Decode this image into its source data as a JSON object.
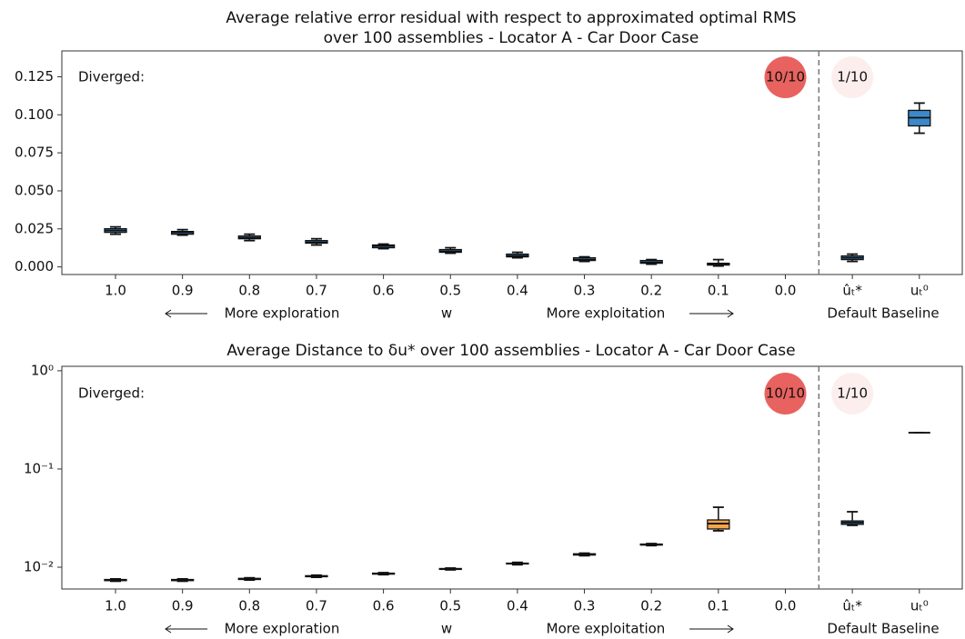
{
  "chart_data": [
    {
      "type": "box",
      "title": [
        "Average relative error residual with respect to approximated optimal RMS",
        "over 100 assemblies - Locator A - Car Door Case"
      ],
      "categories": [
        "1.0",
        "0.9",
        "0.8",
        "0.7",
        "0.6",
        "0.5",
        "0.4",
        "0.3",
        "0.2",
        "0.1",
        "0.0",
        "ûₜ*",
        "uₜ⁰"
      ],
      "boxes": [
        {
          "low": 0.0215,
          "q1": 0.0227,
          "median": 0.0239,
          "q3": 0.0251,
          "high": 0.0263
        },
        {
          "low": 0.0209,
          "q1": 0.0215,
          "median": 0.0227,
          "q3": 0.0233,
          "high": 0.0245
        },
        {
          "low": 0.0173,
          "q1": 0.0185,
          "median": 0.0191,
          "q3": 0.0203,
          "high": 0.0215
        },
        {
          "low": 0.0144,
          "q1": 0.0156,
          "median": 0.0161,
          "q3": 0.0173,
          "high": 0.0185
        },
        {
          "low": 0.012,
          "q1": 0.0126,
          "median": 0.0138,
          "q3": 0.0144,
          "high": 0.015
        },
        {
          "low": 0.009,
          "q1": 0.0096,
          "median": 0.0102,
          "q3": 0.0114,
          "high": 0.0126
        },
        {
          "low": 0.006,
          "q1": 0.0066,
          "median": 0.0072,
          "q3": 0.0084,
          "high": 0.0096
        },
        {
          "low": 0.0036,
          "q1": 0.0042,
          "median": 0.0048,
          "q3": 0.006,
          "high": 0.0066
        },
        {
          "low": 0.0018,
          "q1": 0.0024,
          "median": 0.003,
          "q3": 0.0042,
          "high": 0.0048
        },
        {
          "low": 0.0006,
          "q1": 0.0012,
          "median": 0.0018,
          "q3": 0.0024,
          "high": 0.0048
        },
        null,
        {
          "low": 0.0036,
          "q1": 0.0048,
          "median": 0.006,
          "q3": 0.0072,
          "high": 0.0084
        },
        {
          "low": 0.0879,
          "q1": 0.0927,
          "median": 0.0981,
          "q3": 0.1029,
          "high": 0.1077
        }
      ],
      "colors": [
        "#3d88c9",
        "#3d88c9",
        "#3d88c9",
        "#3d88c9",
        "#3d88c9",
        "#3d88c9",
        "#3d88c9",
        "#3d88c9",
        "#3d88c9",
        "#3d88c9",
        "#3d88c9",
        "#3d88c9",
        "#3d88c9"
      ],
      "ylim": [
        -0.005,
        0.142
      ],
      "yticks": [
        {
          "value": 0,
          "label": "0.000"
        },
        0.025,
        {
          "value": 0.05,
          "label": "0.050"
        },
        0.075,
        {
          "value": 0.1,
          "label": "0.100"
        },
        0.125
      ],
      "log_scale": false,
      "diverged_label": "Diverged:",
      "diverged": [
        {
          "category": "0.0",
          "label": "10/10",
          "color": "#e8625f"
        },
        {
          "category": "ûₜ*",
          "label": "1/10",
          "color": "#fdeeee"
        }
      ],
      "x_annotations": [
        "More exploration",
        "w",
        "More exploitation",
        "Default Baseline"
      ]
    },
    {
      "type": "box",
      "title": [
        "Average Distance to δu* over 100 assemblies - Locator A - Car Door Case"
      ],
      "categories": [
        "1.0",
        "0.9",
        "0.8",
        "0.7",
        "0.6",
        "0.5",
        "0.4",
        "0.3",
        "0.2",
        "0.1",
        "0.0",
        "ûₜ*",
        "uₜ⁰"
      ],
      "boxes": [
        {
          "low": 0.0072,
          "q1": 0.0073,
          "median": 0.0074,
          "q3": 0.0075,
          "high": 0.0076
        },
        {
          "low": 0.0072,
          "q1": 0.0073,
          "median": 0.0074,
          "q3": 0.0075,
          "high": 0.0076
        },
        {
          "low": 0.0074,
          "q1": 0.0075,
          "median": 0.0076,
          "q3": 0.0077,
          "high": 0.0078
        },
        {
          "low": 0.0079,
          "q1": 0.008,
          "median": 0.0081,
          "q3": 0.0082,
          "high": 0.0083
        },
        {
          "low": 0.0084,
          "q1": 0.0085,
          "median": 0.0086,
          "q3": 0.0087,
          "high": 0.0088
        },
        {
          "low": 0.0094,
          "q1": 0.0095,
          "median": 0.0096,
          "q3": 0.0097,
          "high": 0.0098
        },
        {
          "low": 0.0106,
          "q1": 0.0108,
          "median": 0.0109,
          "q3": 0.011,
          "high": 0.0112
        },
        {
          "low": 0.0131,
          "q1": 0.0133,
          "median": 0.0135,
          "q3": 0.0137,
          "high": 0.0139
        },
        {
          "low": 0.0166,
          "q1": 0.0168,
          "median": 0.017,
          "q3": 0.0172,
          "high": 0.0174
        },
        {
          "low": 0.0235,
          "q1": 0.0245,
          "median": 0.0278,
          "q3": 0.0303,
          "high": 0.0408
        },
        null,
        {
          "low": 0.0267,
          "q1": 0.0273,
          "median": 0.0285,
          "q3": 0.0296,
          "high": 0.0367
        },
        {
          "low": 0.234,
          "q1": 0.234,
          "median": 0.234,
          "q3": 0.234,
          "high": 0.234
        }
      ],
      "colors": [
        "#3d88c9",
        "#3d88c9",
        "#3d88c9",
        "#3d88c9",
        "#3d88c9",
        "#3d88c9",
        "#3d88c9",
        "#3d88c9",
        "#3d88c9",
        "#f5a64a",
        "#3d88c9",
        "#3d88c9",
        "#3d88c9"
      ],
      "ylim": [
        0.006,
        1.11
      ],
      "yticks": [
        {
          "value": 0.01,
          "label": "10⁻²"
        },
        {
          "value": 0.1,
          "label": "10⁻¹"
        },
        {
          "value": 1,
          "label": "10⁰"
        }
      ],
      "log_scale": true,
      "diverged_label": "Diverged:",
      "diverged": [
        {
          "category": "0.0",
          "label": "10/10",
          "color": "#e8625f"
        },
        {
          "category": "ûₜ*",
          "label": "1/10",
          "color": "#fdeeee"
        }
      ],
      "x_annotations": [
        "More exploration",
        "w",
        "More exploitation",
        "Default Baseline"
      ]
    }
  ]
}
